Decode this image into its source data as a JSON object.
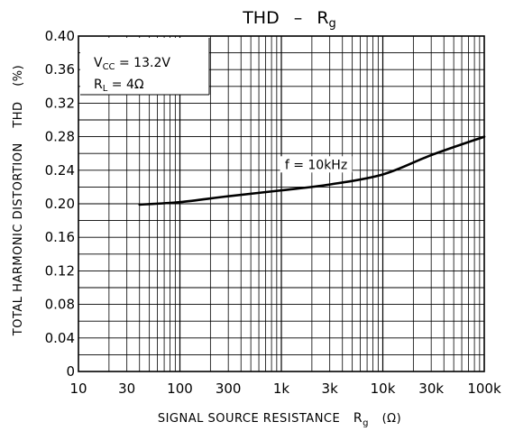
{
  "chart_data": {
    "type": "line",
    "title": "THD – Rg",
    "title_main": "THD",
    "title_dash": "–",
    "title_symbol": "R",
    "title_symbol_sub": "g",
    "xlabel": "SIGNAL SOURCE RESISTANCE",
    "xlabel_symbol": "R",
    "xlabel_symbol_sub": "g",
    "xlabel_unit": "(Ω)",
    "ylabel": "TOTAL HARMONIC DISTORTION",
    "ylabel_symbol": "THD",
    "ylabel_unit": "(%)",
    "x_scale": "log",
    "xlim": [
      10,
      100000
    ],
    "ylim": [
      0,
      0.4
    ],
    "x_ticks": [
      {
        "value": 10,
        "label": "10"
      },
      {
        "value": 30,
        "label": "30"
      },
      {
        "value": 100,
        "label": "100"
      },
      {
        "value": 300,
        "label": "300"
      },
      {
        "value": 1000,
        "label": "1k"
      },
      {
        "value": 3000,
        "label": "3k"
      },
      {
        "value": 10000,
        "label": "10k"
      },
      {
        "value": 30000,
        "label": "30k"
      },
      {
        "value": 100000,
        "label": "100k"
      }
    ],
    "y_ticks": [
      {
        "value": 0,
        "label": "0"
      },
      {
        "value": 0.04,
        "label": "0.04"
      },
      {
        "value": 0.08,
        "label": "0.08"
      },
      {
        "value": 0.12,
        "label": "0.12"
      },
      {
        "value": 0.16,
        "label": "0.16"
      },
      {
        "value": 0.2,
        "label": "0.20"
      },
      {
        "value": 0.24,
        "label": "0.24"
      },
      {
        "value": 0.28,
        "label": "0.28"
      },
      {
        "value": 0.32,
        "label": "0.32"
      },
      {
        "value": 0.36,
        "label": "0.36"
      },
      {
        "value": 0.4,
        "label": "0.40"
      }
    ],
    "grid": true,
    "conditions": [
      {
        "symbol": "V",
        "sub": "CC",
        "text": " = 13.2V"
      },
      {
        "symbol": "R",
        "sub": "L",
        "text": " = 4Ω"
      }
    ],
    "series": [
      {
        "name": "f = 10kHz",
        "x": [
          40,
          100,
          300,
          1000,
          3000,
          10000,
          30000,
          100000
        ],
        "y": [
          0.199,
          0.202,
          0.209,
          0.216,
          0.223,
          0.235,
          0.258,
          0.28
        ]
      }
    ]
  }
}
